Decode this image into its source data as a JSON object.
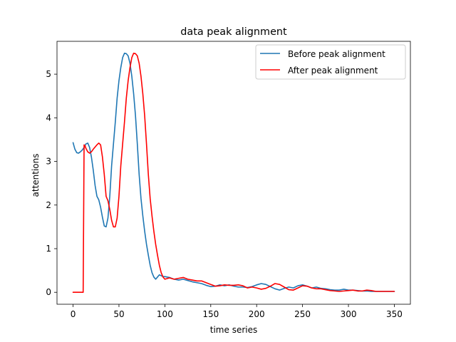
{
  "chart_data": {
    "type": "line",
    "title": "data peak alignment",
    "xlabel": "time series",
    "ylabel": "attentions",
    "xlim": [
      -17.5,
      367.5
    ],
    "ylim": [
      -0.274,
      5.753
    ],
    "xticks": [
      0,
      50,
      100,
      150,
      200,
      250,
      300,
      350
    ],
    "yticks": [
      0,
      1,
      2,
      3,
      4,
      5
    ],
    "grid": false,
    "legend_position": "top-right",
    "series": [
      {
        "name": "Before peak alignment",
        "color": "#1f77b4",
        "x": [
          0,
          2,
          4,
          6,
          8,
          10,
          12,
          14,
          16,
          18,
          20,
          22,
          24,
          26,
          28,
          30,
          32,
          34,
          36,
          38,
          40,
          42,
          44,
          46,
          48,
          50,
          52,
          54,
          56,
          58,
          60,
          62,
          64,
          66,
          68,
          70,
          72,
          74,
          76,
          78,
          80,
          82,
          84,
          86,
          88,
          90,
          92,
          94,
          96,
          98,
          100,
          105,
          110,
          115,
          120,
          125,
          130,
          135,
          140,
          145,
          150,
          155,
          160,
          165,
          170,
          175,
          180,
          185,
          190,
          195,
          200,
          205,
          210,
          215,
          220,
          225,
          230,
          235,
          240,
          245,
          250,
          255,
          260,
          265,
          270,
          275,
          280,
          285,
          290,
          295,
          300,
          305,
          310,
          315,
          320,
          325,
          330,
          335,
          340,
          345,
          350
        ],
        "y": [
          3.43,
          3.28,
          3.2,
          3.19,
          3.22,
          3.26,
          3.32,
          3.4,
          3.42,
          3.32,
          3.1,
          2.8,
          2.45,
          2.2,
          2.12,
          1.95,
          1.72,
          1.52,
          1.5,
          1.7,
          2.2,
          2.9,
          3.4,
          3.9,
          4.45,
          4.85,
          5.15,
          5.38,
          5.48,
          5.47,
          5.42,
          5.25,
          4.95,
          4.55,
          4.05,
          3.4,
          2.7,
          2.15,
          1.75,
          1.4,
          1.1,
          0.85,
          0.62,
          0.45,
          0.35,
          0.3,
          0.35,
          0.4,
          0.38,
          0.36,
          0.36,
          0.34,
          0.3,
          0.28,
          0.3,
          0.27,
          0.24,
          0.22,
          0.2,
          0.16,
          0.13,
          0.14,
          0.17,
          0.15,
          0.17,
          0.14,
          0.12,
          0.12,
          0.11,
          0.13,
          0.17,
          0.2,
          0.18,
          0.13,
          0.08,
          0.05,
          0.09,
          0.12,
          0.1,
          0.15,
          0.17,
          0.14,
          0.1,
          0.12,
          0.09,
          0.08,
          0.06,
          0.05,
          0.05,
          0.07,
          0.05,
          0.05,
          0.04,
          0.03,
          0.03,
          0.02,
          0.02,
          0.02,
          0.02,
          0.02,
          0.02
        ]
      },
      {
        "name": "After peak alignment",
        "color": "#ff0000",
        "x": [
          0,
          4,
          8,
          11,
          12,
          13,
          14,
          16,
          18,
          20,
          22,
          24,
          26,
          28,
          30,
          32,
          34,
          36,
          38,
          40,
          42,
          44,
          46,
          48,
          50,
          52,
          54,
          56,
          58,
          60,
          62,
          64,
          66,
          68,
          70,
          72,
          74,
          76,
          78,
          80,
          82,
          84,
          86,
          88,
          90,
          92,
          94,
          96,
          98,
          100,
          105,
          110,
          115,
          120,
          125,
          130,
          135,
          140,
          145,
          150,
          155,
          160,
          165,
          170,
          175,
          180,
          185,
          190,
          195,
          200,
          205,
          210,
          215,
          220,
          225,
          230,
          235,
          240,
          245,
          250,
          255,
          260,
          265,
          270,
          275,
          280,
          285,
          290,
          295,
          300,
          305,
          310,
          315,
          320,
          325,
          330,
          335,
          340,
          345,
          350
        ],
        "y": [
          0.0,
          0.0,
          0.0,
          0.0,
          3.38,
          3.36,
          3.3,
          3.22,
          3.19,
          3.22,
          3.28,
          3.33,
          3.38,
          3.42,
          3.38,
          3.1,
          2.7,
          2.2,
          2.1,
          1.9,
          1.65,
          1.5,
          1.5,
          1.7,
          2.2,
          2.9,
          3.4,
          3.9,
          4.45,
          4.85,
          5.15,
          5.38,
          5.48,
          5.47,
          5.42,
          5.25,
          4.95,
          4.55,
          4.05,
          3.4,
          2.7,
          2.15,
          1.75,
          1.4,
          1.1,
          0.85,
          0.62,
          0.45,
          0.35,
          0.3,
          0.33,
          0.3,
          0.32,
          0.34,
          0.3,
          0.28,
          0.26,
          0.26,
          0.22,
          0.18,
          0.14,
          0.15,
          0.17,
          0.16,
          0.16,
          0.17,
          0.15,
          0.1,
          0.12,
          0.1,
          0.07,
          0.09,
          0.14,
          0.2,
          0.18,
          0.12,
          0.06,
          0.05,
          0.1,
          0.15,
          0.14,
          0.1,
          0.08,
          0.08,
          0.06,
          0.04,
          0.03,
          0.02,
          0.03,
          0.04,
          0.05,
          0.03,
          0.03,
          0.05,
          0.04,
          0.02,
          0.02,
          0.02,
          0.02,
          0.02
        ]
      }
    ]
  }
}
